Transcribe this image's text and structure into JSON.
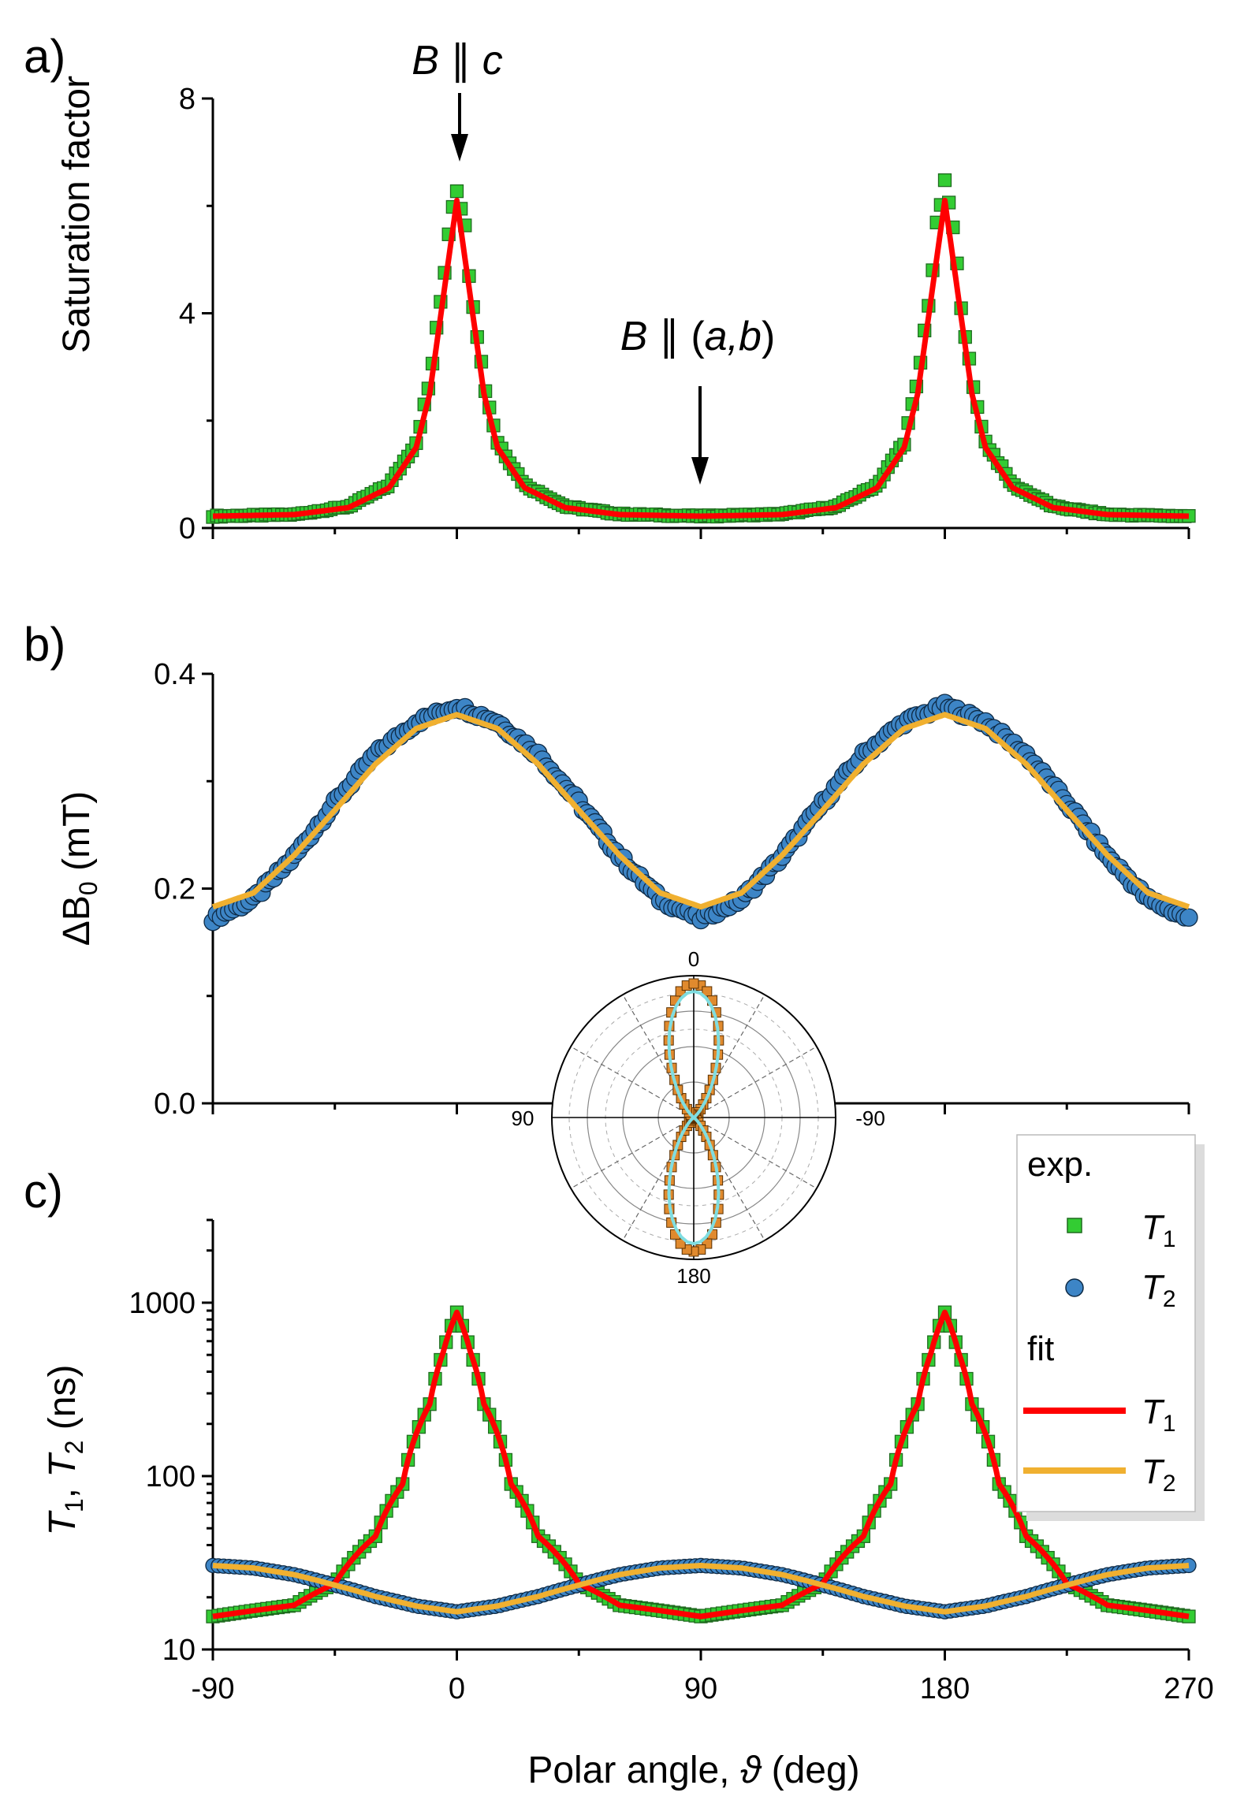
{
  "chart_data": [
    {
      "panel": "a)",
      "type": "scatter",
      "ylabel": "Saturation factor",
      "xlim": [
        -90,
        270
      ],
      "ylim": [
        0,
        8
      ],
      "yticks": [
        0,
        4,
        8
      ],
      "grid": false,
      "legend": "none",
      "series": [
        {
          "name": "experiment",
          "marker": "square",
          "color": "#33cc33",
          "x": [
            -90,
            -60,
            -40,
            -25,
            -15,
            -10,
            -5,
            -2,
            0,
            2,
            5,
            10,
            15,
            25,
            40,
            60,
            90,
            120,
            140,
            155,
            165,
            170,
            175,
            178,
            180,
            182,
            185,
            190,
            195,
            205,
            220,
            240,
            270
          ],
          "y": [
            0.22,
            0.25,
            0.4,
            0.8,
            1.6,
            2.7,
            4.6,
            6.0,
            6.4,
            6.0,
            4.6,
            2.7,
            1.6,
            0.8,
            0.4,
            0.26,
            0.22,
            0.26,
            0.4,
            0.8,
            1.6,
            2.7,
            4.6,
            6.0,
            6.3,
            6.0,
            4.6,
            2.7,
            1.6,
            0.8,
            0.4,
            0.25,
            0.22
          ]
        },
        {
          "name": "fit",
          "line": true,
          "color": "#ff0000",
          "x": [
            -90,
            -60,
            -40,
            -25,
            -15,
            -10,
            -5,
            0,
            5,
            10,
            15,
            25,
            40,
            60,
            90,
            120,
            140,
            155,
            165,
            170,
            175,
            180,
            185,
            190,
            195,
            205,
            220,
            240,
            270
          ],
          "y": [
            0.22,
            0.25,
            0.38,
            0.75,
            1.5,
            2.5,
            4.3,
            6.1,
            4.3,
            2.5,
            1.5,
            0.75,
            0.38,
            0.25,
            0.22,
            0.25,
            0.38,
            0.75,
            1.5,
            2.5,
            4.3,
            6.1,
            4.3,
            2.5,
            1.5,
            0.75,
            0.38,
            0.25,
            0.22
          ]
        }
      ],
      "annotations": [
        {
          "text_pre": "B",
          "text_sym": " ∥ ",
          "text_post": "c",
          "x": 0
        },
        {
          "text_pre": "B",
          "text_sym": " ∥ (",
          "text_post": "a,b",
          "text_end": ")",
          "x": 90
        }
      ]
    },
    {
      "panel": "b)",
      "type": "scatter",
      "ylabel_pre": "ΔB",
      "ylabel_sub": "0",
      "ylabel_post": " (mT)",
      "xlim": [
        -90,
        270
      ],
      "ylim": [
        0,
        0.4
      ],
      "yticks": [
        0.0,
        0.2,
        0.4
      ],
      "grid": false,
      "legend": "none",
      "series": [
        {
          "name": "experiment",
          "marker": "circle",
          "color": "#3d85c6",
          "x": [
            -90,
            -75,
            -60,
            -45,
            -30,
            -15,
            0,
            15,
            30,
            45,
            60,
            75,
            90,
            105,
            120,
            135,
            150,
            165,
            180,
            195,
            210,
            225,
            240,
            255,
            270
          ],
          "y": [
            0.172,
            0.19,
            0.23,
            0.28,
            0.325,
            0.355,
            0.37,
            0.355,
            0.325,
            0.28,
            0.23,
            0.19,
            0.172,
            0.19,
            0.23,
            0.28,
            0.325,
            0.355,
            0.37,
            0.355,
            0.325,
            0.28,
            0.23,
            0.19,
            0.172
          ]
        },
        {
          "name": "fit",
          "line": true,
          "color": "#f0b030",
          "x": [
            -90,
            -75,
            -60,
            -45,
            -30,
            -15,
            0,
            15,
            30,
            45,
            60,
            75,
            90,
            105,
            120,
            135,
            150,
            165,
            180,
            195,
            210,
            225,
            240,
            255,
            270
          ],
          "y": [
            0.183,
            0.196,
            0.231,
            0.273,
            0.316,
            0.349,
            0.362,
            0.349,
            0.316,
            0.273,
            0.231,
            0.196,
            0.183,
            0.196,
            0.231,
            0.273,
            0.316,
            0.349,
            0.362,
            0.349,
            0.316,
            0.273,
            0.231,
            0.196,
            0.183
          ]
        }
      ]
    },
    {
      "panel": "c)",
      "type": "scatter",
      "yscale": "log",
      "xlabel_pre": "Polar angle, ",
      "xlabel_sym": "ϑ",
      "xlabel_post": " (deg)",
      "ylabel": [
        "T",
        "1",
        ",  ",
        "T",
        "2",
        " (ns)"
      ],
      "xlim": [
        -90,
        270
      ],
      "ylim": [
        10,
        3000
      ],
      "yticks": [
        10,
        100,
        1000
      ],
      "xticks": [
        -90,
        0,
        90,
        180,
        270
      ],
      "grid": false,
      "legend": "top-right",
      "legend_entries": {
        "exp": "exp.",
        "fit": "fit",
        "t": "T",
        "one": "1",
        "two": "2"
      },
      "series": [
        {
          "name": "T1 exp.",
          "marker": "square",
          "color": "#33cc33",
          "x": [
            -90,
            -60,
            -45,
            -30,
            -20,
            -10,
            -5,
            0,
            5,
            10,
            20,
            30,
            45,
            60,
            90,
            120,
            135,
            150,
            160,
            170,
            175,
            180,
            185,
            190,
            200,
            210,
            225,
            240,
            270
          ],
          "y": [
            15.5,
            18,
            24,
            45,
            90,
            260,
            520,
            880,
            520,
            260,
            90,
            45,
            24,
            18,
            15.5,
            18,
            24,
            45,
            90,
            260,
            520,
            880,
            520,
            260,
            90,
            45,
            24,
            18,
            15.5
          ]
        },
        {
          "name": "T2 exp.",
          "marker": "circle",
          "color": "#3d85c6",
          "x": [
            -90,
            -75,
            -60,
            -45,
            -30,
            -15,
            0,
            15,
            30,
            45,
            60,
            75,
            90,
            105,
            120,
            135,
            150,
            165,
            180,
            195,
            210,
            225,
            240,
            255,
            270
          ],
          "y": [
            30.5,
            29.5,
            27,
            23.5,
            20.2,
            17.8,
            16.5,
            17.8,
            20.2,
            23.5,
            27,
            29.5,
            30.5,
            29.5,
            27,
            23.5,
            20.2,
            17.8,
            16.5,
            17.8,
            20.2,
            23.5,
            27,
            29.5,
            30.5
          ]
        },
        {
          "name": "T1 fit",
          "line": true,
          "color": "#ff0000",
          "x": [
            -90,
            -60,
            -45,
            -30,
            -20,
            -10,
            -5,
            0,
            5,
            10,
            20,
            30,
            45,
            60,
            90,
            120,
            135,
            150,
            160,
            170,
            175,
            180,
            185,
            190,
            200,
            210,
            225,
            240,
            270
          ],
          "y": [
            15.5,
            18,
            24,
            45,
            90,
            260,
            520,
            880,
            520,
            260,
            90,
            45,
            24,
            18,
            15.5,
            18,
            24,
            45,
            90,
            260,
            520,
            880,
            520,
            260,
            90,
            45,
            24,
            18,
            15.5
          ]
        },
        {
          "name": "T2 fit",
          "line": true,
          "color": "#f0b030",
          "x": [
            -90,
            -75,
            -60,
            -45,
            -30,
            -15,
            0,
            15,
            30,
            45,
            60,
            75,
            90,
            105,
            120,
            135,
            150,
            165,
            180,
            195,
            210,
            225,
            240,
            255,
            270
          ],
          "y": [
            30.5,
            29.5,
            27,
            23.5,
            20.2,
            17.8,
            16.5,
            17.8,
            20.2,
            23.5,
            27,
            29.5,
            30.5,
            29.5,
            27,
            23.5,
            20.2,
            17.8,
            16.5,
            17.8,
            20.2,
            23.5,
            27,
            29.5,
            30.5
          ]
        }
      ],
      "inset": {
        "type": "polar",
        "angle_labels": {
          "top": "0",
          "left": "90",
          "right": "-90",
          "bottom": "180"
        },
        "series": [
          {
            "name": "T1 exp.",
            "color": "#e08a2e"
          },
          {
            "name": "T1 fit",
            "color": "#7fdde0"
          }
        ]
      }
    }
  ]
}
